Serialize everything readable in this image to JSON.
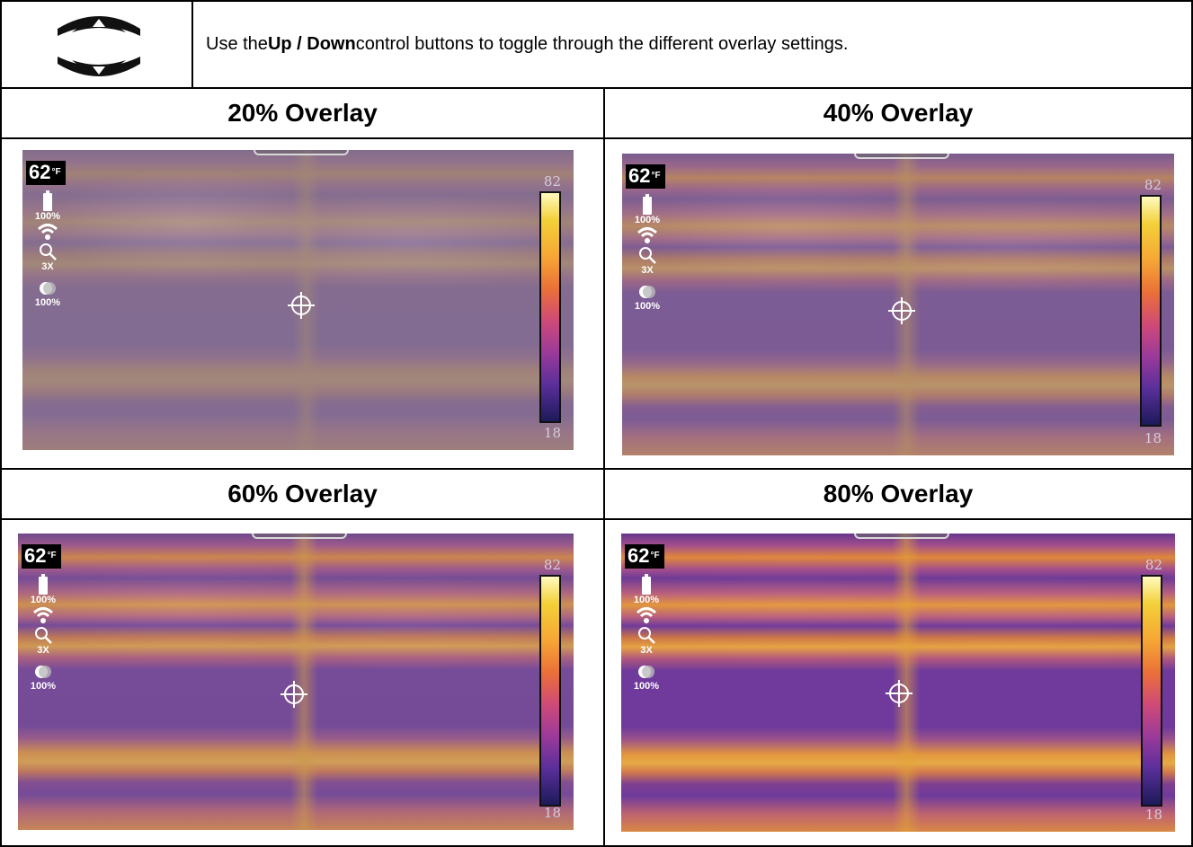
{
  "instruction": {
    "pre": "Use the ",
    "bold": "Up / Down",
    "post": " control buttons to toggle through the different overlay settings.",
    "icon": "up-down-control-icon"
  },
  "panels": [
    {
      "title": "20% Overlay",
      "temp": "62",
      "unit": "°F",
      "battery": "100%",
      "zoom": "3X",
      "overlay_value": "100%",
      "scale_max": "82",
      "scale_min": "18",
      "overlay_fraction": 0.2
    },
    {
      "title": "40% Overlay",
      "temp": "62",
      "unit": "°F",
      "battery": "100%",
      "zoom": "3X",
      "overlay_value": "100%",
      "scale_max": "82",
      "scale_min": "18",
      "overlay_fraction": 0.4
    },
    {
      "title": "60% Overlay",
      "temp": "62",
      "unit": "°F",
      "battery": "100%",
      "zoom": "3X",
      "overlay_value": "100%",
      "scale_max": "82",
      "scale_min": "18",
      "overlay_fraction": 0.6
    },
    {
      "title": "80% Overlay",
      "temp": "62",
      "unit": "°F",
      "battery": "100%",
      "zoom": "3X",
      "overlay_value": "100%",
      "scale_max": "82",
      "scale_min": "18",
      "overlay_fraction": 0.8
    }
  ],
  "icons": {
    "battery": "battery-icon",
    "wifi": "wifi-icon",
    "zoom": "magnifier-icon",
    "overlay": "overlay-blend-icon",
    "target": "crosshair-icon"
  }
}
